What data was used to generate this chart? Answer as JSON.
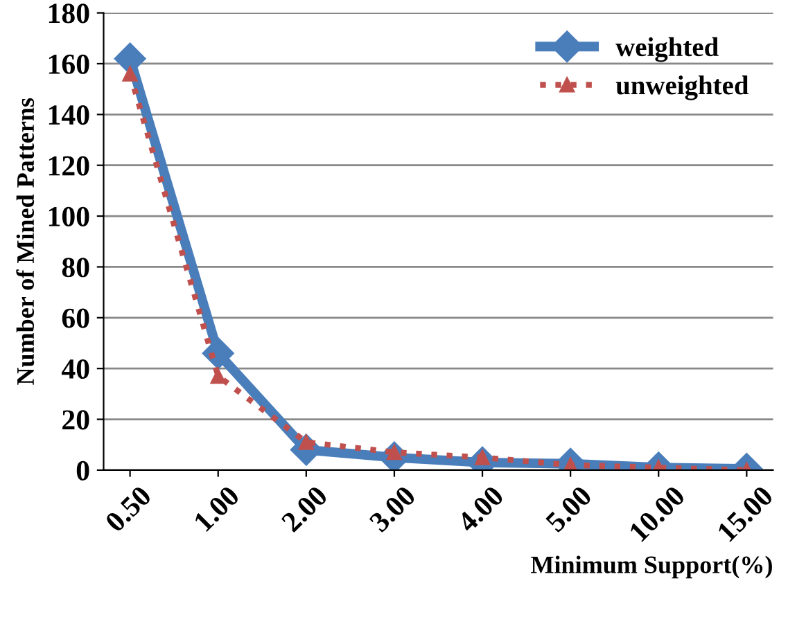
{
  "chart_data": {
    "type": "line",
    "xlabel": "Minimum Support(%)",
    "ylabel": "Number of Mined Patterns",
    "categories": [
      "0.50",
      "1.00",
      "2.00",
      "3.00",
      "4.00",
      "5.00",
      "10.00",
      "15.00"
    ],
    "series": [
      {
        "name": "weighted",
        "color": "#4a7ebb",
        "marker": "diamond",
        "line_style": "solid",
        "values": [
          162,
          46,
          8,
          5,
          3,
          2.5,
          1,
          0.5
        ]
      },
      {
        "name": "unweighted",
        "color": "#c0504d",
        "marker": "triangle",
        "line_style": "dotted",
        "values": [
          156,
          37,
          11,
          7,
          5,
          2,
          1,
          0
        ]
      }
    ],
    "ylim": [
      0,
      180
    ],
    "yticks": [
      0,
      20,
      40,
      60,
      80,
      100,
      120,
      140,
      160,
      180
    ],
    "grid": "y",
    "legend": "top right"
  }
}
